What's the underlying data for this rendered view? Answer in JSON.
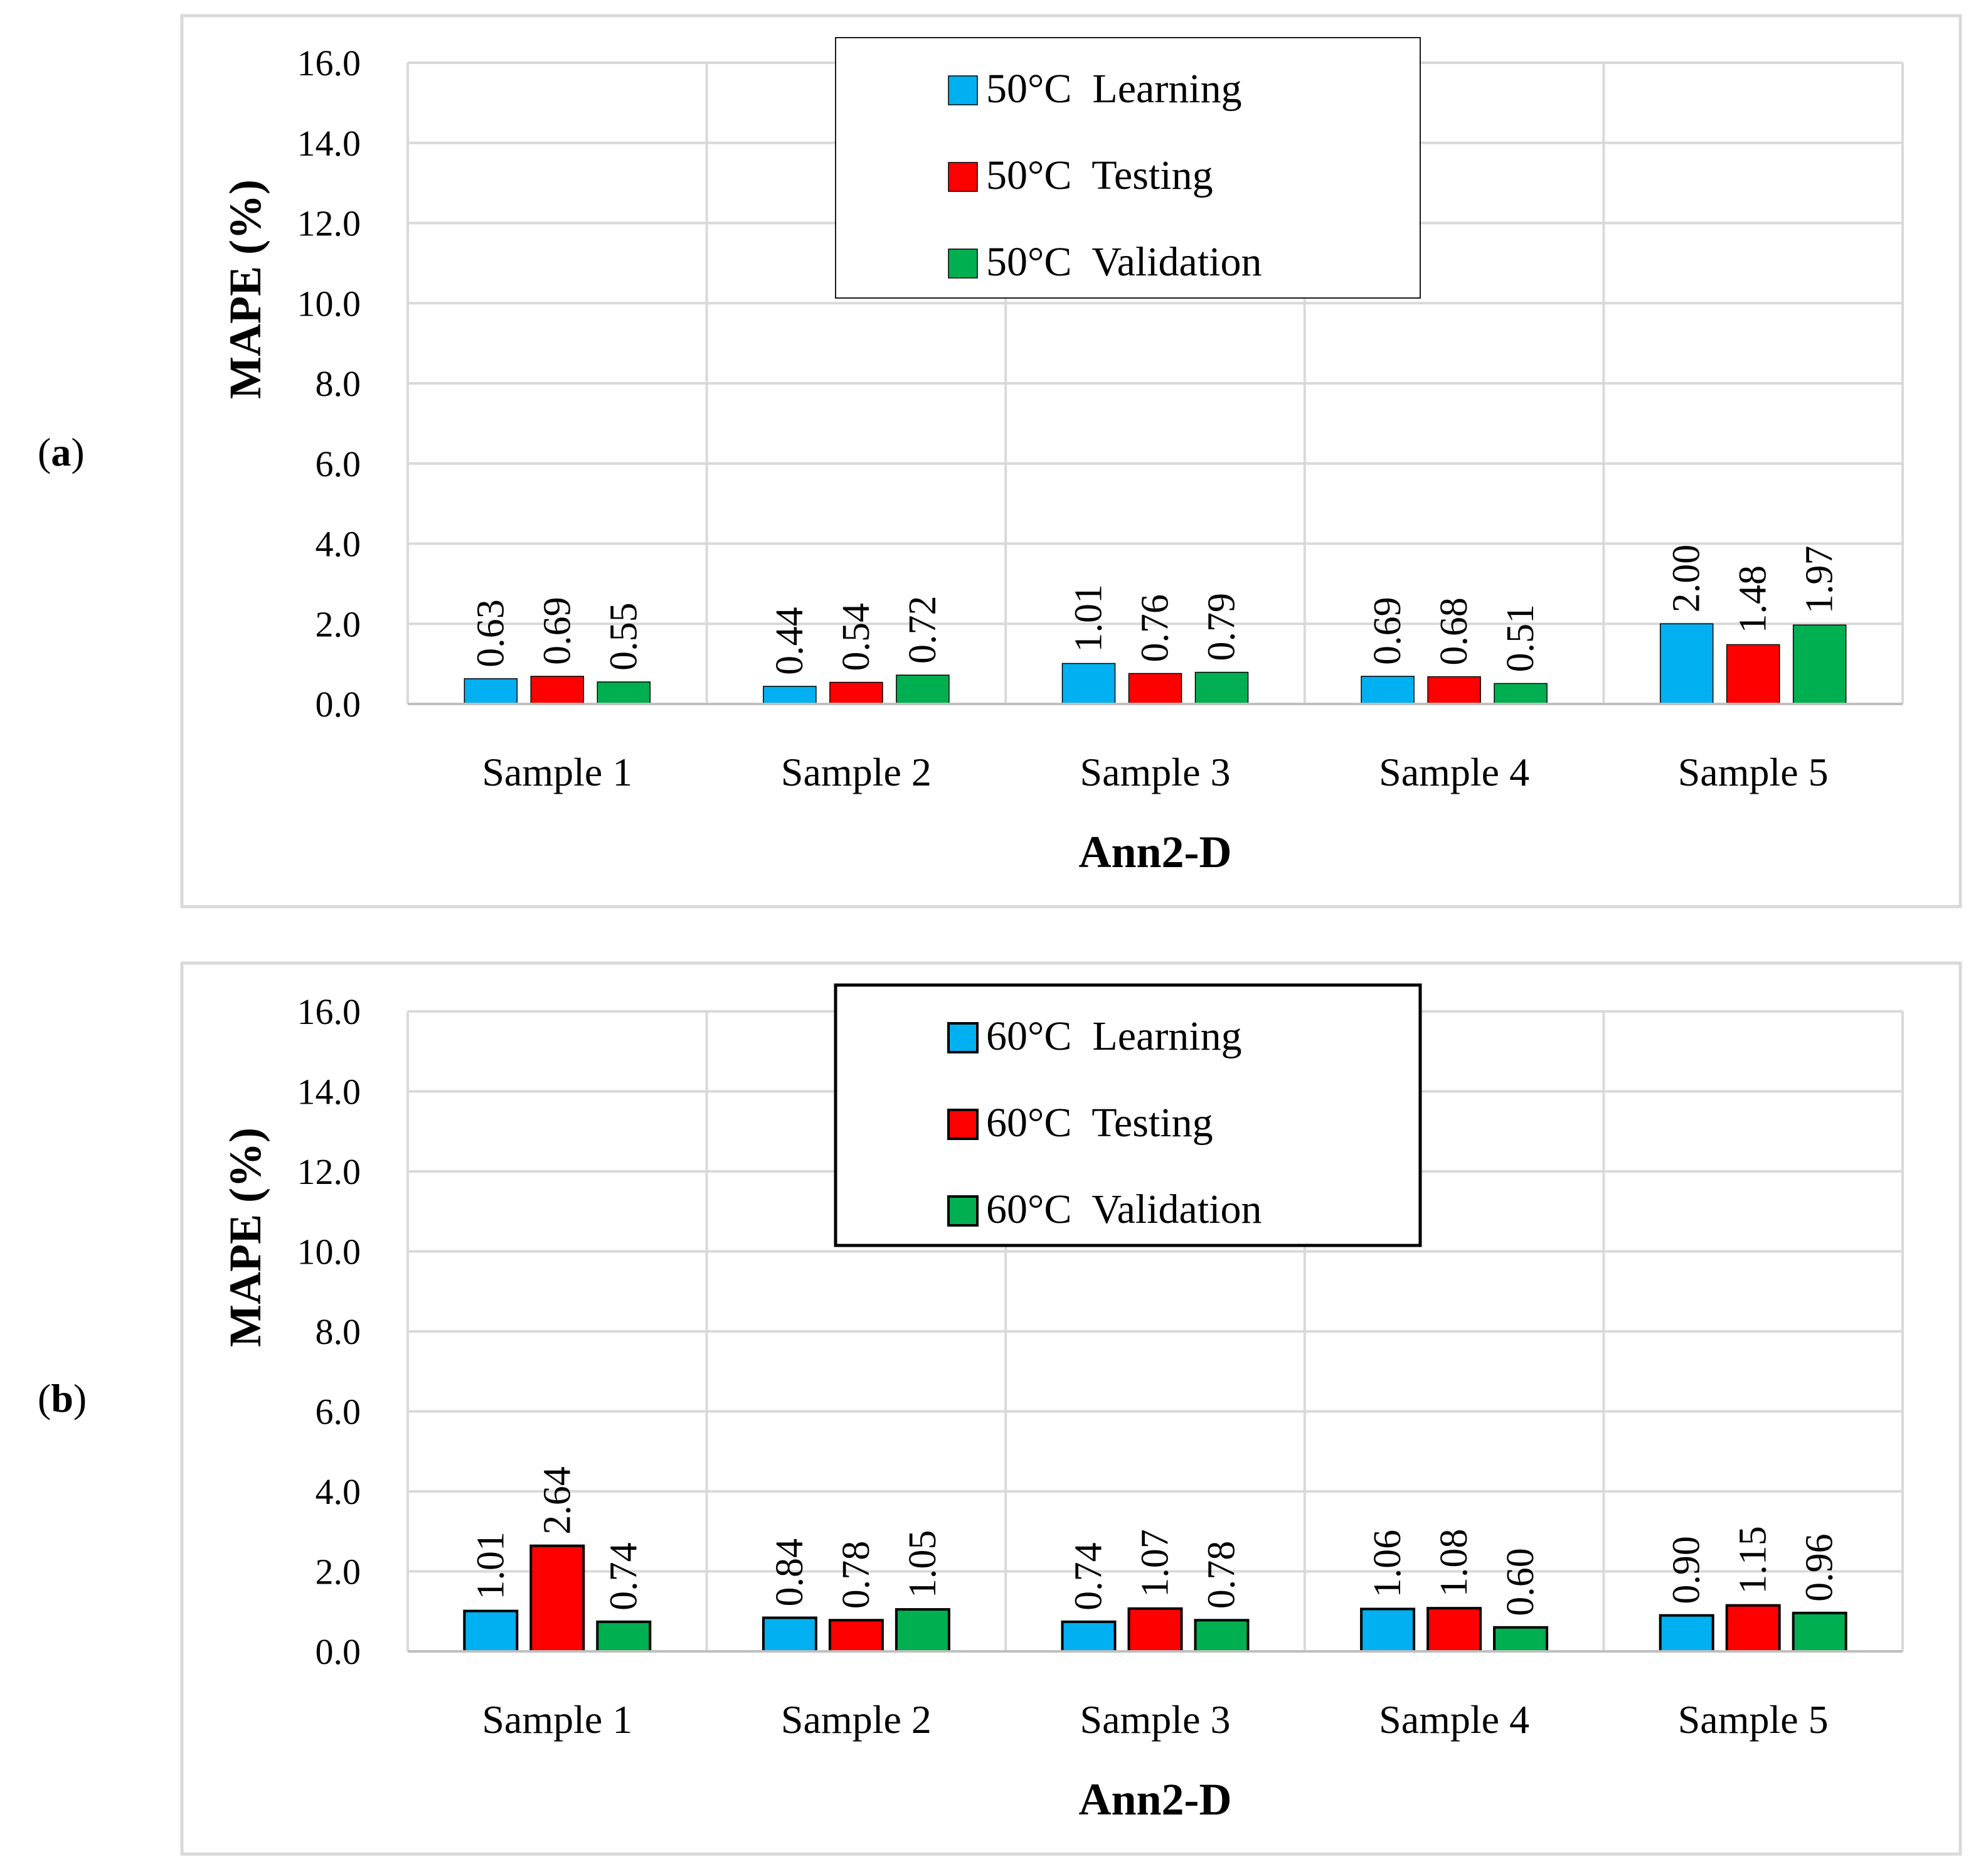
{
  "figure": {
    "panels": [
      {
        "label_open": "(",
        "label_letter": "a",
        "label_close": ")"
      },
      {
        "label_open": "(",
        "label_letter": "b",
        "label_close": ")"
      }
    ]
  },
  "chart_data": [
    {
      "type": "bar",
      "panel": "a",
      "categories": [
        "Sample 1",
        "Sample 2",
        "Sample 3",
        "Sample 4",
        "Sample 5"
      ],
      "series": [
        {
          "name": "50°C  Learning",
          "color": "#00B0F0",
          "values": [
            0.63,
            0.44,
            1.01,
            0.69,
            2.0
          ],
          "labels": [
            "0.63",
            "0.44",
            "1.01",
            "0.69",
            "2.00"
          ]
        },
        {
          "name": "50°C  Testing",
          "color": "#FF0000",
          "values": [
            0.69,
            0.54,
            0.76,
            0.68,
            1.48
          ],
          "labels": [
            "0.69",
            "0.54",
            "0.76",
            "0.68",
            "1.48"
          ]
        },
        {
          "name": "50°C  Validation",
          "color": "#00B050",
          "values": [
            0.55,
            0.72,
            0.79,
            0.51,
            1.97
          ],
          "labels": [
            "0.55",
            "0.72",
            "0.79",
            "0.51",
            "1.97"
          ]
        }
      ],
      "title": "",
      "xlabel": "Ann2-D",
      "ylabel": "MAPE (%)",
      "ylim": [
        0,
        16
      ],
      "ytick_step": 2,
      "ytick_labels": [
        "0.0",
        "2.0",
        "4.0",
        "6.0",
        "8.0",
        "10.0",
        "12.0",
        "14.0",
        "16.0"
      ],
      "grid": true,
      "legend": "top-center",
      "bar_outline": "thin"
    },
    {
      "type": "bar",
      "panel": "b",
      "categories": [
        "Sample 1",
        "Sample 2",
        "Sample 3",
        "Sample 4",
        "Sample 5"
      ],
      "series": [
        {
          "name": "60°C  Learning",
          "color": "#00B0F0",
          "values": [
            1.01,
            0.84,
            0.74,
            1.06,
            0.9
          ],
          "labels": [
            "1.01",
            "0.84",
            "0.74",
            "1.06",
            "0.90"
          ]
        },
        {
          "name": "60°C  Testing",
          "color": "#FF0000",
          "values": [
            2.64,
            0.78,
            1.07,
            1.08,
            1.15
          ],
          "labels": [
            "2.64",
            "0.78",
            "1.07",
            "1.08",
            "1.15"
          ]
        },
        {
          "name": "60°C  Validation",
          "color": "#00B050",
          "values": [
            0.74,
            1.05,
            0.78,
            0.6,
            0.96
          ],
          "labels": [
            "0.74",
            "1.05",
            "0.78",
            "0.60",
            "0.96"
          ]
        }
      ],
      "title": "",
      "xlabel": "Ann2-D",
      "ylabel": "MAPE (%)",
      "ylim": [
        0,
        16
      ],
      "ytick_step": 2,
      "ytick_labels": [
        "0.0",
        "2.0",
        "4.0",
        "6.0",
        "8.0",
        "10.0",
        "12.0",
        "14.0",
        "16.0"
      ],
      "grid": true,
      "legend": "top-center",
      "bar_outline": "bold"
    }
  ]
}
